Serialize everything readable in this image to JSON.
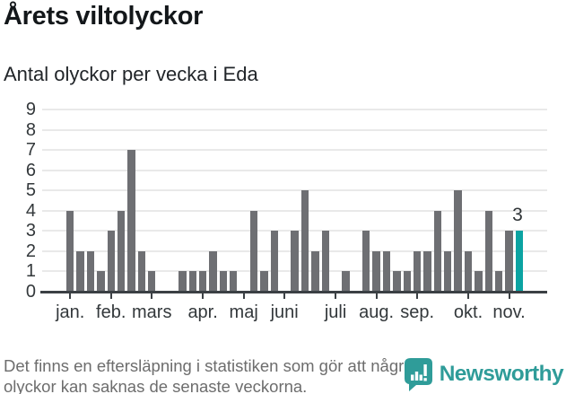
{
  "header": {
    "title": "Årets viltolyckor",
    "subtitle": "Antal olyckor per vecka i Eda"
  },
  "chart_data": {
    "type": "bar",
    "title": "Årets viltolyckor",
    "subtitle": "Antal olyckor per vecka i Eda",
    "x_unit": "vecka",
    "values": [
      4,
      2,
      2,
      1,
      3,
      4,
      7,
      2,
      1,
      0,
      0,
      1,
      1,
      1,
      2,
      1,
      1,
      0,
      4,
      1,
      3,
      0,
      3,
      5,
      2,
      3,
      0,
      1,
      0,
      3,
      2,
      2,
      1,
      1,
      2,
      2,
      4,
      2,
      5,
      2,
      1,
      4,
      1,
      3,
      3
    ],
    "highlight_index": 44,
    "highlight_value_label": "3",
    "y_ticks": [
      0,
      1,
      2,
      3,
      4,
      5,
      6,
      7,
      8,
      9
    ],
    "ylim": [
      0,
      9
    ],
    "grid": true,
    "legend": "none",
    "month_ticks": [
      {
        "label": "jan.",
        "index": 0
      },
      {
        "label": "feb.",
        "index": 4
      },
      {
        "label": "mars",
        "index": 8
      },
      {
        "label": "apr.",
        "index": 13
      },
      {
        "label": "maj",
        "index": 17
      },
      {
        "label": "juni",
        "index": 21
      },
      {
        "label": "juli",
        "index": 26
      },
      {
        "label": "aug.",
        "index": 30
      },
      {
        "label": "sep.",
        "index": 34
      },
      {
        "label": "okt.",
        "index": 39
      },
      {
        "label": "nov.",
        "index": 43
      }
    ],
    "colors": {
      "bar": "#6e6f73",
      "highlight": "#0ba3a2",
      "grid": "#e9e9e9",
      "axis": "#3b4044",
      "tick_text": "#33383b"
    }
  },
  "footer": {
    "note_line1": "Det finns en eftersläpning i statistiken som gör att några",
    "note_line2": "olyckor kan saknas de senaste veckorna.",
    "brand_name": "Newsworthy",
    "brand_color": "#2f9c99"
  }
}
